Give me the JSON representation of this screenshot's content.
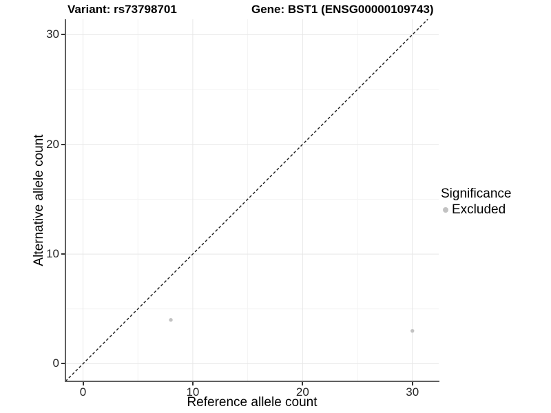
{
  "chart_data": {
    "type": "scatter",
    "title_left": "Variant: rs73798701",
    "title_right": "Gene: BST1 (ENSG00000109743)",
    "xlabel": "Reference allele count",
    "ylabel": "Alternative allele count",
    "xlim": [
      -1.6,
      32.4
    ],
    "ylim": [
      -1.6,
      31.4
    ],
    "xticks": [
      0,
      10,
      20,
      30
    ],
    "yticks": [
      0,
      10,
      20,
      30
    ],
    "xminor": [
      5,
      15,
      25
    ],
    "yminor": [
      5,
      15,
      25
    ],
    "grid": "major+minor on white background",
    "reference_line": {
      "type": "identity",
      "equation": "y = x",
      "style": "dashed",
      "color": "#1a1a1a"
    },
    "series": [
      {
        "name": "Excluded",
        "marker": "circle",
        "color": "#c2c2c2",
        "points": [
          {
            "x": 8,
            "y": 4
          },
          {
            "x": 30,
            "y": 3
          }
        ]
      }
    ],
    "legend": {
      "title": "Significance",
      "position": "right",
      "items": [
        {
          "label": "Excluded",
          "color": "#c2c2c2"
        }
      ]
    },
    "colors": {
      "background": "#ffffff",
      "axis_line": "#5f5f5f",
      "tick_mark": "#333333",
      "tick_label": "#262626",
      "text": "#000000",
      "grid_major": "#e7e7e7",
      "grid_minor": "#f3f3f3",
      "point": "#c2c2c2",
      "reference_line": "#1a1a1a"
    }
  }
}
